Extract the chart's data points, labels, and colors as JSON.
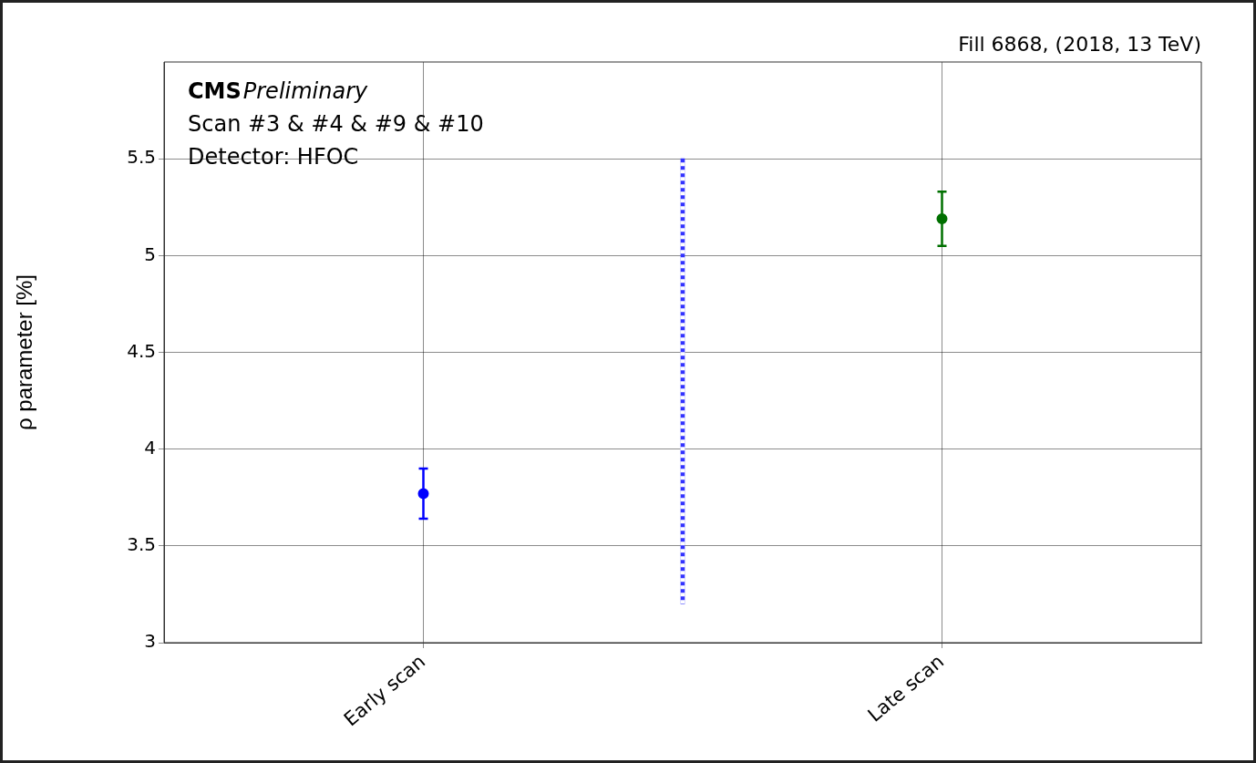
{
  "chart_data": {
    "type": "scatter",
    "title": "Fill 6868, (2018, 13 TeV)",
    "ylabel": "ρ parameter [%]",
    "annotations": [
      "CMS",
      "Preliminary",
      "Scan #3 & #4 & #9 & #10",
      "Detector: HFOC"
    ],
    "categories": [
      null,
      "Early scan",
      null,
      "Late scan",
      null
    ],
    "ylim": [
      3,
      6
    ],
    "yticks": [
      3,
      3.5,
      4,
      4.5,
      5,
      5.5
    ],
    "grid": true,
    "marker": "circle",
    "series": [
      {
        "color": "#0000ff",
        "values": [
          null,
          3.77,
          null,
          null,
          null
        ],
        "errors": [
          null,
          0.13,
          null,
          null,
          null
        ]
      },
      {
        "color": "#007000",
        "values": [
          null,
          null,
          null,
          5.19,
          null
        ],
        "errors": [
          null,
          null,
          null,
          0.14,
          null
        ]
      },
      {
        "type": "bar",
        "color": "#3333ff",
        "values": [
          null,
          null,
          2.3,
          null,
          null
        ],
        "base": [
          null,
          null,
          3.2,
          null,
          null
        ],
        "line_style": "dotted"
      }
    ]
  }
}
